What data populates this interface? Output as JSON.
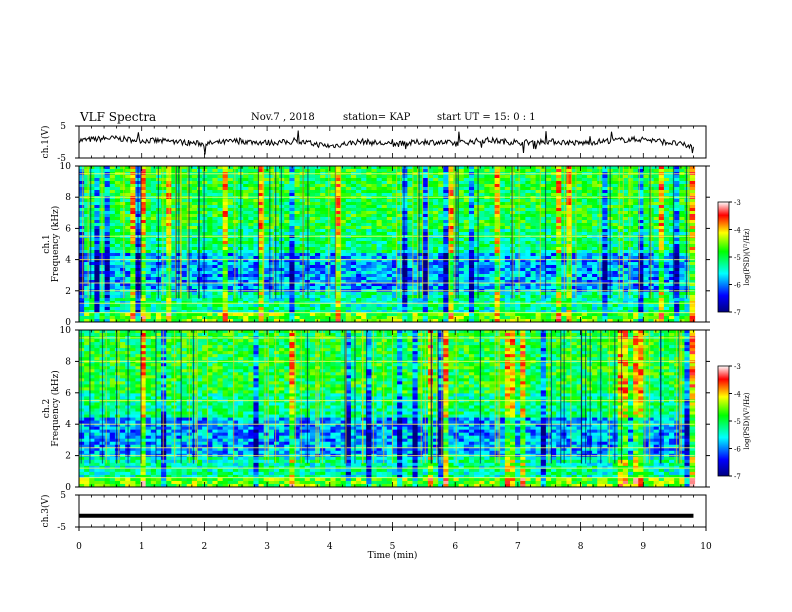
{
  "header": {
    "title": "VLF Spectra",
    "date": "Nov.7 , 2018",
    "station": "station= KAP",
    "start": "start UT = 15: 0 : 1"
  },
  "colors": {
    "low": "#00008b",
    "mid": "#00ffff",
    "green": "#22dd22",
    "yellow": "#ffff00",
    "high": "#cc0000"
  },
  "chart_data": [
    {
      "type": "line",
      "ylabel": "ch.1(V)",
      "ylim": [
        -5,
        5
      ],
      "yticks": [
        5,
        -5
      ],
      "x": [
        0,
        0.5,
        1,
        1.5,
        2,
        2.5,
        3,
        3.5,
        4,
        4.5,
        5,
        5.5,
        6,
        6.5,
        7,
        7.5,
        8,
        8.5,
        9,
        9.5,
        9.8
      ],
      "values": [
        0.5,
        1.2,
        0.5,
        0.2,
        -0.6,
        0.3,
        -0.2,
        0.1,
        -1.3,
        0.2,
        -0.8,
        0.1,
        -0.4,
        0.6,
        -0.2,
        0.2,
        -0.4,
        0.5,
        0.9,
        -0.4,
        -1.6
      ]
    },
    {
      "type": "heatmap",
      "panel_label": "ch.1",
      "ylabel": "Frequency (kHz)",
      "ylim": [
        0,
        10
      ],
      "yticks": [
        0,
        2,
        4,
        6,
        8,
        10
      ],
      "colorbar": {
        "label": "log(PSD)(V²/Hz)",
        "range": [
          -7,
          -3
        ],
        "ticks": [
          -3,
          -4,
          -5,
          -6,
          -7
        ]
      }
    },
    {
      "type": "heatmap",
      "panel_label": "ch.2",
      "ylabel": "Frequency (kHz)",
      "ylim": [
        0,
        10
      ],
      "yticks": [
        0,
        2,
        4,
        6,
        8,
        10
      ],
      "colorbar": {
        "label": "log(PSD)(V²/Hz)",
        "range": [
          -7,
          -3
        ],
        "ticks": [
          -3,
          -4,
          -5,
          -6,
          -7
        ]
      }
    },
    {
      "type": "line",
      "ylabel": "ch.3(V)",
      "ylim": [
        -5,
        5
      ],
      "yticks": [
        5,
        -5
      ],
      "x": [
        0,
        9.8
      ],
      "values": [
        -1.5,
        -1.5
      ]
    }
  ],
  "xaxis": {
    "label": "Time (min)",
    "range": [
      0,
      10
    ],
    "ticks": [
      0,
      1,
      2,
      3,
      4,
      5,
      6,
      7,
      8,
      9,
      10
    ]
  }
}
